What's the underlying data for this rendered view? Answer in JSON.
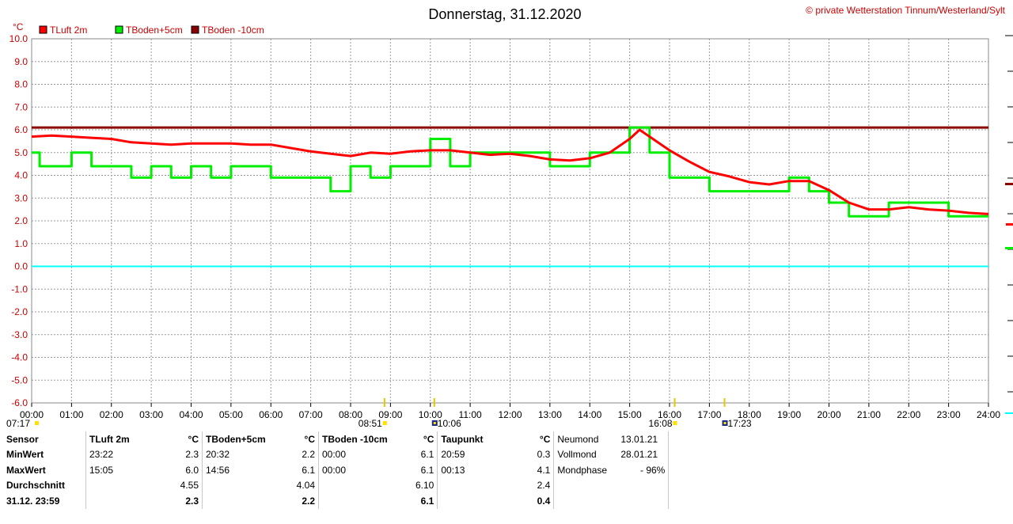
{
  "chart_data": {
    "type": "line",
    "title": "Donnerstag, 31.12.2020",
    "credit": "© private Wetterstation Tinnum/Westerland/Sylt",
    "ylabel": "°C",
    "ylim": [
      -6,
      10
    ],
    "yticks": [
      "10.0",
      "9.0",
      "8.0",
      "7.0",
      "6.0",
      "5.0",
      "4.0",
      "3.0",
      "2.0",
      "1.0",
      "0.0",
      "-1.0",
      "-2.0",
      "-3.0",
      "-4.0",
      "-5.0",
      "-6.0"
    ],
    "xlim": [
      0,
      24
    ],
    "xticks": [
      "00:00",
      "01:00",
      "02:00",
      "03:00",
      "04:00",
      "05:00",
      "06:00",
      "07:00",
      "08:00",
      "09:00",
      "10:00",
      "11:00",
      "12:00",
      "13:00",
      "14:00",
      "15:00",
      "16:00",
      "17:00",
      "18:00",
      "19:00",
      "20:00",
      "21:00",
      "22:00",
      "23:00",
      "24:00"
    ],
    "grid": true,
    "legend_position": "top-left",
    "sun_moon_labels": [
      {
        "label": "07:17",
        "hour": 0
      },
      {
        "label": "08:51",
        "hour": 8.85
      },
      {
        "label": "10:06",
        "hour": 10.1
      },
      {
        "label": "16:08",
        "hour": 16.13
      },
      {
        "label": "17:23",
        "hour": 17.38
      }
    ],
    "series": [
      {
        "name": "TLuft 2m",
        "color": "#ff0000",
        "x": [
          0,
          0.5,
          1,
          1.5,
          2,
          2.5,
          3,
          3.5,
          4,
          4.5,
          5,
          5.5,
          6,
          6.5,
          7,
          7.5,
          8,
          8.5,
          9,
          9.5,
          10,
          10.5,
          11,
          11.5,
          12,
          12.5,
          13,
          13.5,
          14,
          14.5,
          15,
          15.25,
          15.5,
          16,
          16.5,
          17,
          17.5,
          18,
          18.5,
          19,
          19.5,
          20,
          20.5,
          21,
          21.5,
          22,
          22.5,
          23,
          23.5,
          24
        ],
        "y": [
          5.7,
          5.75,
          5.7,
          5.65,
          5.6,
          5.45,
          5.4,
          5.35,
          5.4,
          5.4,
          5.4,
          5.35,
          5.35,
          5.2,
          5.05,
          4.95,
          4.85,
          5.0,
          4.95,
          5.05,
          5.1,
          5.1,
          5.0,
          4.9,
          4.95,
          4.85,
          4.7,
          4.65,
          4.75,
          5.0,
          5.6,
          6.0,
          5.7,
          5.1,
          4.6,
          4.15,
          3.95,
          3.7,
          3.6,
          3.75,
          3.75,
          3.35,
          2.8,
          2.5,
          2.5,
          2.6,
          2.5,
          2.45,
          2.35,
          2.3
        ]
      },
      {
        "name": "TBoden+5cm",
        "color": "#00ee00",
        "x": [
          0,
          0.2,
          0.2,
          1,
          1,
          1.5,
          1.5,
          2,
          2,
          2.5,
          2.5,
          3,
          3,
          3.5,
          3.5,
          4,
          4,
          4.5,
          4.5,
          5,
          5,
          5.5,
          5.5,
          6,
          6,
          6.5,
          6.5,
          7,
          7,
          7.5,
          7.5,
          8,
          8,
          8.5,
          8.5,
          9,
          9,
          9.5,
          9.5,
          10,
          10,
          10.5,
          10.5,
          11,
          11,
          11.5,
          11.5,
          12,
          12,
          12.5,
          12.5,
          13,
          13,
          13.5,
          13.5,
          14,
          14,
          14.5,
          14.5,
          15,
          15,
          15.5,
          15.5,
          16,
          16,
          16.5,
          16.5,
          17,
          17,
          17.5,
          17.5,
          18,
          18,
          18.5,
          18.5,
          19,
          19,
          19.5,
          19.5,
          20,
          20,
          20.5,
          20.5,
          21,
          21,
          21.5,
          21.5,
          22,
          22,
          22.5,
          22.5,
          23,
          23,
          23.5,
          23.5,
          24
        ],
        "y": [
          5.0,
          5.0,
          4.4,
          4.4,
          5.0,
          5.0,
          4.4,
          4.4,
          4.4,
          4.4,
          3.9,
          3.9,
          4.4,
          4.4,
          3.9,
          3.9,
          4.4,
          4.4,
          3.9,
          3.9,
          4.4,
          4.4,
          4.4,
          4.4,
          3.9,
          3.9,
          3.9,
          3.9,
          3.9,
          3.9,
          3.3,
          3.3,
          4.4,
          4.4,
          3.9,
          3.9,
          4.4,
          4.4,
          4.4,
          4.4,
          5.6,
          5.6,
          4.4,
          4.4,
          5.0,
          5.0,
          5.0,
          5.0,
          5.0,
          5.0,
          5.0,
          5.0,
          4.4,
          4.4,
          4.4,
          4.4,
          5.0,
          5.0,
          5.0,
          5.0,
          6.1,
          6.1,
          5.0,
          5.0,
          3.9,
          3.9,
          3.9,
          3.9,
          3.3,
          3.3,
          3.3,
          3.3,
          3.3,
          3.3,
          3.3,
          3.3,
          3.9,
          3.9,
          3.3,
          3.3,
          2.8,
          2.8,
          2.2,
          2.2,
          2.2,
          2.2,
          2.8,
          2.8,
          2.8,
          2.8,
          2.8,
          2.8,
          2.2,
          2.2,
          2.2,
          2.2
        ]
      },
      {
        "name": "TBoden -10cm",
        "color": "#8b0000",
        "x": [
          0,
          24
        ],
        "y": [
          6.1,
          6.1
        ]
      },
      {
        "name": "",
        "color": "#00ffff",
        "x": [
          0,
          24
        ],
        "y": [
          0,
          0
        ]
      }
    ]
  },
  "stats": {
    "header": {
      "sensor": "Sensor",
      "tluft": "TLuft 2m",
      "tboden5": "TBoden+5cm",
      "tboden10": "TBoden -10cm",
      "taupunkt": "Taupunkt",
      "unit": "°C"
    },
    "minwert": {
      "label": "MinWert",
      "tluft_time": "23:22",
      "tluft_val": "2.3",
      "tboden5_time": "20:32",
      "tboden5_val": "2.2",
      "tboden10_time": "00:00",
      "tboden10_val": "6.1",
      "taupunkt_time": "20:59",
      "taupunkt_val": "0.3"
    },
    "maxwert": {
      "label": "MaxWert",
      "tluft_time": "15:05",
      "tluft_val": "6.0",
      "tboden5_time": "14:56",
      "tboden5_val": "6.1",
      "tboden10_time": "00:00",
      "tboden10_val": "6.1",
      "taupunkt_time": "00:13",
      "taupunkt_val": "4.1"
    },
    "durchschnitt": {
      "label": "Durchschnitt",
      "tluft_val": "4.55",
      "tboden5_val": "4.04",
      "tboden10_val": "6.10",
      "taupunkt_val": "2.4"
    },
    "current": {
      "label": "31.12. 23:59",
      "tluft_val": "2.3",
      "tboden5_val": "2.2",
      "tboden10_val": "6.1",
      "taupunkt_val": "0.4"
    },
    "moon": {
      "neumond_label": "Neumond",
      "neumond_val": "13.01.21",
      "vollmond_label": "Vollmond",
      "vollmond_val": "28.01.21",
      "phase_label": "Mondphase",
      "phase_val": "- 96%"
    }
  }
}
